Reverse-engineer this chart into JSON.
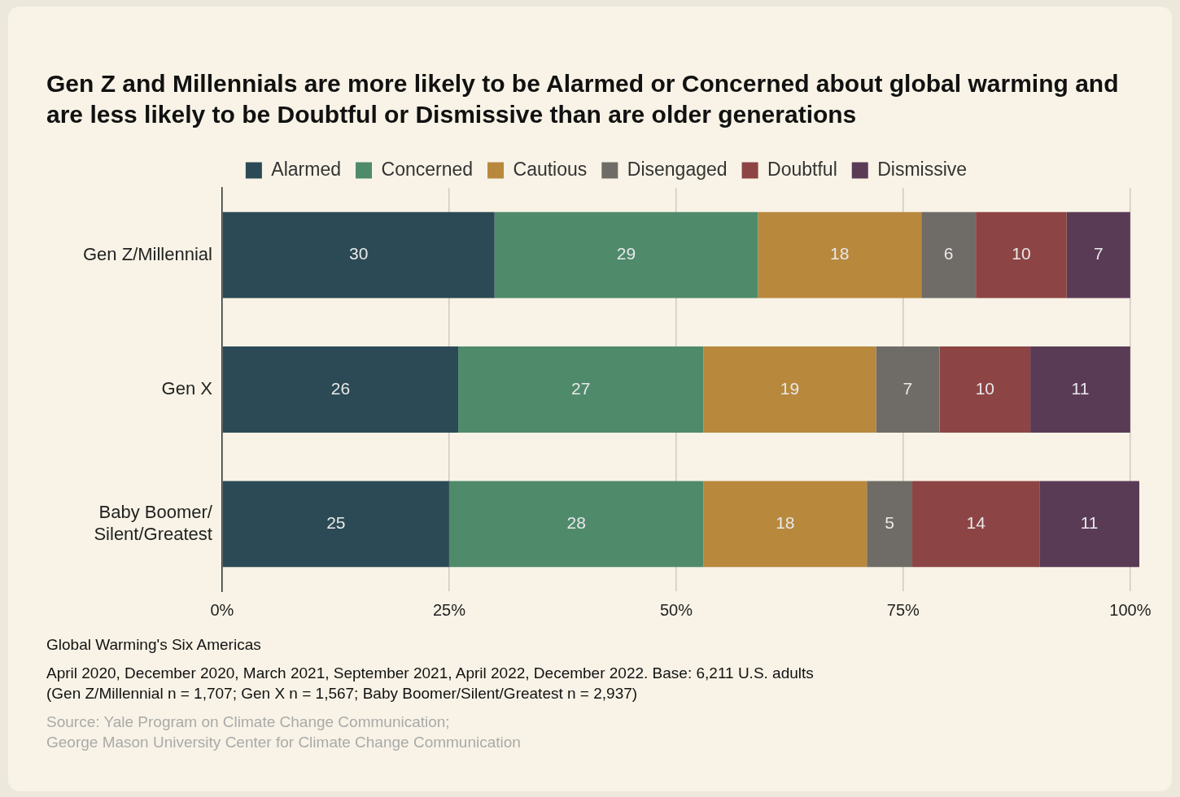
{
  "chart_data": {
    "type": "bar",
    "orientation": "horizontal",
    "stacked": true,
    "title": "Gen Z and Millennials are more likely to be Alarmed or Concerned about global warming and are less likely to be Doubtful or Dismissive than are older generations",
    "categories": [
      "Gen Z/Millennial",
      "Gen X",
      "Baby Boomer/\nSilent/Greatest"
    ],
    "series": [
      {
        "name": "Alarmed",
        "color": "#2b4a55",
        "values": [
          30,
          26,
          25
        ]
      },
      {
        "name": "Concerned",
        "color": "#4f8a6b",
        "values": [
          29,
          27,
          28
        ]
      },
      {
        "name": "Cautious",
        "color": "#b8883d",
        "values": [
          18,
          19,
          18
        ]
      },
      {
        "name": "Disengaged",
        "color": "#6f6c67",
        "values": [
          6,
          7,
          5
        ]
      },
      {
        "name": "Doubtful",
        "color": "#8d4444",
        "values": [
          10,
          10,
          14
        ]
      },
      {
        "name": "Dismissive",
        "color": "#5a3b56",
        "values": [
          7,
          11,
          11
        ]
      }
    ],
    "xlim": [
      0,
      101
    ],
    "xticks": [
      {
        "value": 0,
        "label": "0%"
      },
      {
        "value": 25,
        "label": "25%"
      },
      {
        "value": 50,
        "label": "50%"
      },
      {
        "value": 75,
        "label": "75%"
      },
      {
        "value": 100,
        "label": "100%"
      }
    ],
    "grid": "x",
    "legend": "top",
    "data_labels": true,
    "annotations": [
      "Global Warming's Six Americas",
      "April 2020, December 2020, March 2021, September 2021, April 2022, December 2022. Base: 6,211 U.S. adults\n(Gen Z/Millennial n = 1,707; Gen X n = 1,567; Baby Boomer/Silent/Greatest n = 2,937)",
      "Source: Yale Program on Climate Change Communication;\nGeorge Mason University Center for Climate Change Communication"
    ]
  }
}
